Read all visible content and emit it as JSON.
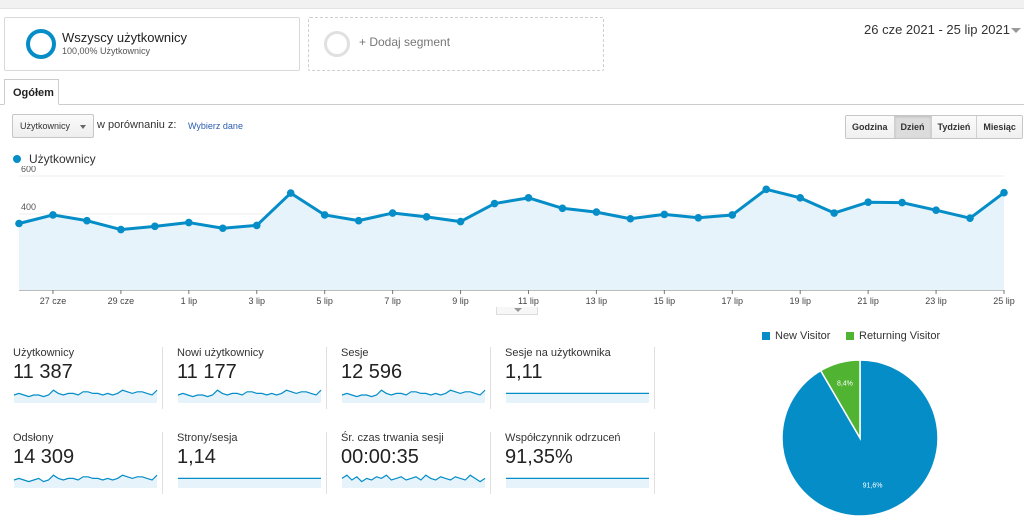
{
  "segments": {
    "active": {
      "title": "Wszyscy użytkownicy",
      "subtitle": "100,00% Użytkownicy"
    },
    "add": {
      "label": "+ Dodaj segment"
    }
  },
  "date_range": "26 cze 2021 - 25 lip 2021",
  "tabs": [
    {
      "label": "Ogółem"
    }
  ],
  "controls": {
    "metric_select": "Użytkownicy",
    "compare_label": "w porównaniu z:",
    "compare_link": "Wybierz dane",
    "granularity": [
      "Godzina",
      "Dzień",
      "Tydzień",
      "Miesiąc"
    ],
    "granularity_active": "Dzień"
  },
  "colors": {
    "primary": "#058dc7",
    "fill": "#e6f3fa",
    "returning": "#50b432"
  },
  "chart_data": {
    "type": "area",
    "series": [
      {
        "name": "Użytkownicy",
        "values": [
          350,
          395,
          365,
          318,
          335,
          355,
          325,
          340,
          510,
          395,
          365,
          405,
          385,
          360,
          455,
          485,
          430,
          410,
          375,
          398,
          380,
          395,
          530,
          485,
          405,
          462,
          460,
          420,
          378,
          512
        ]
      }
    ],
    "x": [
      "26 cze",
      "27 cze",
      "28 cze",
      "29 cze",
      "30 cze",
      "1 lip",
      "2 lip",
      "3 lip",
      "4 lip",
      "5 lip",
      "6 lip",
      "7 lip",
      "8 lip",
      "9 lip",
      "10 lip",
      "11 lip",
      "12 lip",
      "13 lip",
      "14 lip",
      "15 lip",
      "16 lip",
      "17 lip",
      "18 lip",
      "19 lip",
      "20 lip",
      "21 lip",
      "22 lip",
      "23 lip",
      "24 lip",
      "25 lip"
    ],
    "x_tick_labels": [
      "27 cze",
      "29 cze",
      "1 lip",
      "3 lip",
      "5 lip",
      "7 lip",
      "9 lip",
      "11 lip",
      "13 lip",
      "15 lip",
      "17 lip",
      "19 lip",
      "21 lip",
      "23 lip",
      "25 lip"
    ],
    "y_ticks": [
      200,
      400,
      600
    ],
    "ylim": [
      0,
      600
    ],
    "grid": true,
    "legend": "top-left"
  },
  "kpis": [
    {
      "name": "Użytkownicy",
      "value": "11 387",
      "spark": [
        5,
        6,
        5,
        4,
        5,
        5,
        4,
        5,
        8,
        6,
        5,
        6,
        6,
        5,
        7,
        7,
        6,
        6,
        5,
        6,
        5,
        6,
        8,
        7,
        6,
        7,
        7,
        6,
        5,
        8
      ]
    },
    {
      "name": "Nowi użytkownicy",
      "value": "11 177",
      "spark": [
        5,
        6,
        5,
        4,
        5,
        5,
        4,
        5,
        8,
        6,
        5,
        6,
        6,
        5,
        7,
        7,
        6,
        6,
        5,
        6,
        5,
        6,
        8,
        7,
        6,
        7,
        7,
        6,
        5,
        8
      ]
    },
    {
      "name": "Sesje",
      "value": "12 596",
      "spark": [
        5,
        6,
        5,
        4,
        5,
        5,
        4,
        5,
        8,
        6,
        5,
        6,
        6,
        5,
        7,
        7,
        6,
        6,
        5,
        6,
        5,
        6,
        8,
        7,
        6,
        7,
        7,
        6,
        5,
        8
      ]
    },
    {
      "name": "Sesje na użytkownika",
      "value": "1,11",
      "spark": [
        6,
        6,
        6,
        6,
        6,
        6,
        6,
        6,
        6,
        6,
        6,
        6,
        6,
        6,
        6,
        6,
        6,
        6,
        6,
        6,
        6,
        6,
        6,
        6,
        6,
        6,
        6,
        6,
        6,
        6
      ]
    },
    {
      "name": "Odsłony",
      "value": "14 309",
      "spark": [
        5,
        6,
        5,
        4,
        5,
        6,
        4,
        5,
        8,
        6,
        5,
        6,
        6,
        5,
        7,
        7,
        6,
        6,
        5,
        6,
        5,
        6,
        8,
        7,
        6,
        7,
        7,
        6,
        5,
        8
      ]
    },
    {
      "name": "Strony/sesja",
      "value": "1,14",
      "spark": [
        6,
        6,
        6,
        6,
        6,
        6,
        6,
        6,
        6,
        6,
        6,
        6,
        6,
        6,
        6,
        6,
        6,
        6,
        6,
        6,
        6,
        6,
        6,
        6,
        6,
        6,
        6,
        6,
        6,
        6
      ]
    },
    {
      "name": "Śr. czas trwania sesji",
      "value": "00:00:35",
      "spark": [
        6,
        8,
        5,
        7,
        4,
        6,
        5,
        7,
        6,
        8,
        5,
        6,
        7,
        5,
        6,
        7,
        5,
        8,
        6,
        5,
        7,
        6,
        5,
        7,
        6,
        5,
        8,
        6,
        4,
        6
      ]
    },
    {
      "name": "Współczynnik odrzuceń",
      "value": "91,35%",
      "spark": [
        6,
        6,
        6,
        6,
        6,
        6,
        6,
        6,
        6,
        6,
        6,
        6,
        6,
        6,
        6,
        6,
        6,
        6,
        6,
        6,
        6,
        6,
        6,
        6,
        6,
        6,
        6,
        6,
        6,
        6
      ]
    }
  ],
  "pie_data": {
    "type": "pie",
    "legend": [
      {
        "name": "New Visitor",
        "color": "#058dc7"
      },
      {
        "name": "Returning Visitor",
        "color": "#50b432"
      }
    ],
    "slices": [
      {
        "name": "New Visitor",
        "value": 91.6,
        "label": "91,6%"
      },
      {
        "name": "Returning Visitor",
        "value": 8.4,
        "label": "8,4%"
      }
    ]
  }
}
